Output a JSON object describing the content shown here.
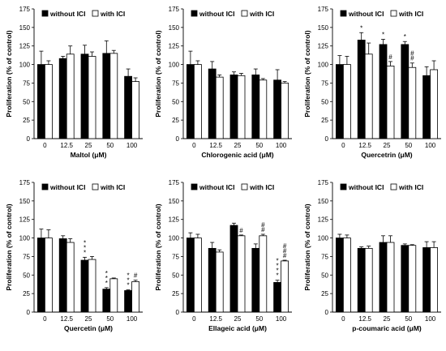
{
  "legend": {
    "without": "without ICI",
    "with": "with ICI"
  },
  "colors": {
    "without": "#000000",
    "with": "#ffffff",
    "edge": "#000000"
  },
  "chart_data": [
    {
      "type": "bar",
      "categories": [
        "0",
        "12.5",
        "25",
        "50",
        "100"
      ],
      "xlabel": "Maltol (μM)",
      "ylabel": "Proliferation (% of control)",
      "ylim": [
        0,
        175
      ],
      "yticks": [
        "0",
        "25",
        "50",
        "75",
        "100",
        "125",
        "150",
        "175"
      ],
      "legend_position": "top",
      "series": [
        {
          "name": "without ICI",
          "values": [
            100,
            108,
            114,
            115,
            84
          ],
          "errors": [
            18,
            3,
            12,
            17,
            10
          ]
        },
        {
          "name": "with ICI",
          "values": [
            100,
            114,
            111,
            115,
            77
          ],
          "errors": [
            5,
            11,
            6,
            4,
            5
          ]
        }
      ],
      "annotations": [
        {
          "category": "0",
          "series": "without ICI",
          "text": ""
        },
        {
          "category": "0",
          "series": "with ICI",
          "text": ""
        },
        {
          "category": "12.5",
          "series": "without ICI",
          "text": ""
        },
        {
          "category": "12.5",
          "series": "with ICI",
          "text": ""
        },
        {
          "category": "25",
          "series": "without ICI",
          "text": ""
        },
        {
          "category": "25",
          "series": "with ICI",
          "text": ""
        },
        {
          "category": "50",
          "series": "without ICI",
          "text": ""
        },
        {
          "category": "50",
          "series": "with ICI",
          "text": ""
        },
        {
          "category": "100",
          "series": "without ICI",
          "text": ""
        },
        {
          "category": "100",
          "series": "with ICI",
          "text": ""
        }
      ]
    },
    {
      "type": "bar",
      "categories": [
        "0",
        "12.5",
        "25",
        "50",
        "100"
      ],
      "xlabel": "Chlorogenic acid (μM)",
      "ylabel": "Proliferation (% of control)",
      "ylim": [
        0,
        175
      ],
      "yticks": [
        "0",
        "25",
        "50",
        "75",
        "100",
        "125",
        "150",
        "175"
      ],
      "legend_position": "top",
      "series": [
        {
          "name": "without ICI",
          "values": [
            100,
            94,
            86,
            86,
            79
          ],
          "errors": [
            18,
            10,
            4,
            8,
            14
          ]
        },
        {
          "name": "with ICI",
          "values": [
            100,
            83,
            85,
            79,
            75
          ],
          "errors": [
            5,
            3,
            3,
            2,
            2
          ]
        }
      ],
      "annotations": [
        {
          "category": "0",
          "series": "without ICI",
          "text": ""
        },
        {
          "category": "0",
          "series": "with ICI",
          "text": ""
        },
        {
          "category": "12.5",
          "series": "without ICI",
          "text": ""
        },
        {
          "category": "12.5",
          "series": "with ICI",
          "text": ""
        },
        {
          "category": "25",
          "series": "without ICI",
          "text": ""
        },
        {
          "category": "25",
          "series": "with ICI",
          "text": ""
        },
        {
          "category": "50",
          "series": "without ICI",
          "text": ""
        },
        {
          "category": "50",
          "series": "with ICI",
          "text": ""
        },
        {
          "category": "100",
          "series": "without ICI",
          "text": ""
        },
        {
          "category": "100",
          "series": "with ICI",
          "text": ""
        }
      ]
    },
    {
      "type": "bar",
      "categories": [
        "0",
        "12.5",
        "25",
        "50",
        "100"
      ],
      "xlabel": "Quercetrin (μM)",
      "ylabel": "Proliferation (% of control)",
      "ylim": [
        0,
        175
      ],
      "yticks": [
        "0",
        "25",
        "50",
        "75",
        "100",
        "125",
        "150",
        "175"
      ],
      "legend_position": "top",
      "series": [
        {
          "name": "without ICI",
          "values": [
            100,
            133,
            127,
            127,
            85
          ],
          "errors": [
            12,
            10,
            7,
            4,
            12
          ]
        },
        {
          "name": "with ICI",
          "values": [
            100,
            114,
            98,
            96,
            93
          ],
          "errors": [
            11,
            15,
            6,
            6,
            12
          ]
        }
      ],
      "annotations": [
        {
          "category": "0",
          "series": "without ICI",
          "text": ""
        },
        {
          "category": "0",
          "series": "with ICI",
          "text": ""
        },
        {
          "category": "12.5",
          "series": "without ICI",
          "text": "*"
        },
        {
          "category": "12.5",
          "series": "with ICI",
          "text": ""
        },
        {
          "category": "25",
          "series": "without ICI",
          "text": "*"
        },
        {
          "category": "25",
          "series": "with ICI",
          "text": "#"
        },
        {
          "category": "50",
          "series": "without ICI",
          "text": "*"
        },
        {
          "category": "50",
          "series": "with ICI",
          "text": "# #"
        },
        {
          "category": "100",
          "series": "without ICI",
          "text": ""
        },
        {
          "category": "100",
          "series": "with ICI",
          "text": ""
        }
      ]
    },
    {
      "type": "bar",
      "categories": [
        "0",
        "12.5",
        "25",
        "50",
        "100"
      ],
      "xlabel": "Quercetin (μM)",
      "ylabel": "Proliferation (% of control)",
      "ylim": [
        0,
        175
      ],
      "yticks": [
        "0",
        "25",
        "50",
        "75",
        "100",
        "125",
        "150",
        "175"
      ],
      "legend_position": "top",
      "series": [
        {
          "name": "without ICI",
          "values": [
            100,
            99,
            70,
            31,
            29
          ],
          "errors": [
            12,
            4,
            4,
            2,
            1
          ]
        },
        {
          "name": "with ICI",
          "values": [
            100,
            94,
            71,
            45,
            41
          ],
          "errors": [
            11,
            5,
            4,
            1,
            2
          ]
        }
      ],
      "annotations": [
        {
          "category": "0",
          "series": "without ICI",
          "text": ""
        },
        {
          "category": "0",
          "series": "with ICI",
          "text": ""
        },
        {
          "category": "12.5",
          "series": "without ICI",
          "text": ""
        },
        {
          "category": "12.5",
          "series": "with ICI",
          "text": ""
        },
        {
          "category": "25",
          "series": "without ICI",
          "text": "* * *"
        },
        {
          "category": "25",
          "series": "with ICI",
          "text": ""
        },
        {
          "category": "50",
          "series": "without ICI",
          "text": "* * *"
        },
        {
          "category": "50",
          "series": "with ICI",
          "text": ""
        },
        {
          "category": "100",
          "series": "without ICI",
          "text": "* * *"
        },
        {
          "category": "100",
          "series": "with ICI",
          "text": "#"
        }
      ]
    },
    {
      "type": "bar",
      "categories": [
        "0",
        "12.5",
        "25",
        "50",
        "100"
      ],
      "xlabel": "Ellageic acid (μM)",
      "ylabel": "Proliferation (% of control)",
      "ylim": [
        0,
        175
      ],
      "yticks": [
        "0",
        "25",
        "50",
        "75",
        "100",
        "125",
        "150",
        "175"
      ],
      "legend_position": "top",
      "series": [
        {
          "name": "without ICI",
          "values": [
            100,
            86,
            117,
            86,
            40
          ],
          "errors": [
            7,
            8,
            3,
            6,
            3
          ]
        },
        {
          "name": "with ICI",
          "values": [
            100,
            81,
            103,
            103,
            69
          ],
          "errors": [
            5,
            3,
            1,
            2,
            1
          ]
        }
      ],
      "annotations": [
        {
          "category": "0",
          "series": "without ICI",
          "text": ""
        },
        {
          "category": "0",
          "series": "with ICI",
          "text": ""
        },
        {
          "category": "12.5",
          "series": "without ICI",
          "text": ""
        },
        {
          "category": "12.5",
          "series": "with ICI",
          "text": ""
        },
        {
          "category": "25",
          "series": "without ICI",
          "text": ""
        },
        {
          "category": "25",
          "series": "with ICI",
          "text": "#"
        },
        {
          "category": "50",
          "series": "without ICI",
          "text": ""
        },
        {
          "category": "50",
          "series": "with ICI",
          "text": "# #"
        },
        {
          "category": "100",
          "series": "without ICI",
          "text": "* * * *"
        },
        {
          "category": "100",
          "series": "with ICI",
          "text": "# # #"
        }
      ]
    },
    {
      "type": "bar",
      "categories": [
        "0",
        "12.5",
        "25",
        "50",
        "100"
      ],
      "xlabel": "p-coumaric acid (μM)",
      "ylabel": "Proliferation (% of control)",
      "ylim": [
        0,
        175
      ],
      "yticks": [
        "0",
        "25",
        "50",
        "75",
        "100",
        "125",
        "150",
        "175"
      ],
      "legend_position": "top",
      "series": [
        {
          "name": "without ICI",
          "values": [
            100,
            86,
            94,
            90,
            87
          ],
          "errors": [
            5,
            2,
            9,
            2,
            8
          ]
        },
        {
          "name": "with ICI",
          "values": [
            100,
            86,
            94,
            90,
            87
          ],
          "errors": [
            4,
            3,
            9,
            1,
            8
          ]
        }
      ],
      "annotations": [
        {
          "category": "0",
          "series": "without ICI",
          "text": ""
        },
        {
          "category": "0",
          "series": "with ICI",
          "text": ""
        },
        {
          "category": "12.5",
          "series": "without ICI",
          "text": ""
        },
        {
          "category": "12.5",
          "series": "with ICI",
          "text": ""
        },
        {
          "category": "25",
          "series": "without ICI",
          "text": ""
        },
        {
          "category": "25",
          "series": "with ICI",
          "text": ""
        },
        {
          "category": "50",
          "series": "without ICI",
          "text": ""
        },
        {
          "category": "50",
          "series": "with ICI",
          "text": ""
        },
        {
          "category": "100",
          "series": "without ICI",
          "text": ""
        },
        {
          "category": "100",
          "series": "with ICI",
          "text": ""
        }
      ]
    }
  ]
}
